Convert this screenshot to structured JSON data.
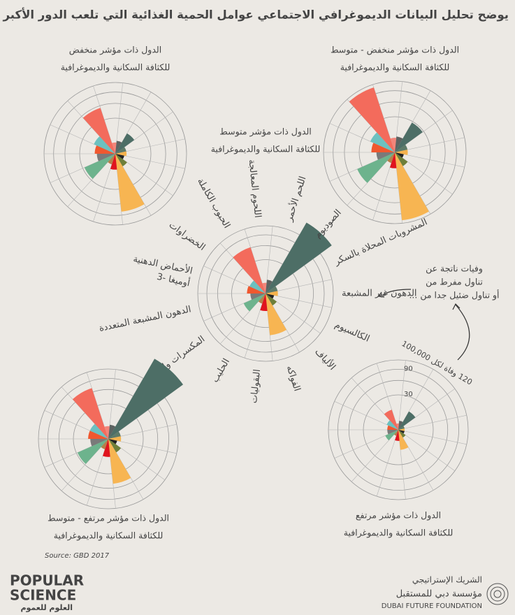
{
  "title": "يوضح تحليل البيانات الديموغرافي الاجتماعي عوامل الحمية الغذائية التي تلعب الدور الأكبر في معدلات الوفاة",
  "categories": [
    "اللحوم المعالجة",
    "اللحم الأحمر",
    "الصوديوم",
    "المشروبات المحلاة بالسكر",
    "الدهون غير المشبعة",
    "الكالسيوم",
    "الألياف",
    "الفواكه",
    "البقوليات",
    "الحليب",
    "المكسرات والبذور",
    "الدهون المشبعة المتعددة",
    [
      "الأحماض الدهنية",
      "أوميغا -3"
    ],
    "الخضراوات",
    "الحبوب الكاملة"
  ],
  "colors": [
    "#f2857a",
    "#5d6361",
    "#4d6e66",
    "#5e7a68",
    "#f5b24c",
    "#222222",
    "#6e7f3a",
    "#f7b552",
    "#e0141e",
    "#b5804a",
    "#6db38d",
    "#7a7a7a",
    "#f0582f",
    "#6cc1c0",
    "#f36b5c"
  ],
  "scale": "sqrt",
  "rlim": [
    0,
    120
  ],
  "rings": [
    30,
    60,
    90,
    120
  ],
  "rticks": [
    30,
    90,
    {
      "value": 120,
      "label": "120 وفاة لكل 100,000"
    }
  ],
  "annotation": [
    "وفيات ناتجة عن",
    "تناول مفرط من",
    "أو تناول ضئيل جدا من ..."
  ],
  "source": "Source: GBD 2017",
  "logos": {
    "left": [
      "POPULAR",
      "SCIENCE",
      "العلوم للعموم"
    ],
    "right": [
      "الشريك الإستراتيجي",
      "مؤسسة دبي للمستقبل",
      "DUBAI FUTURE FOUNDATION"
    ]
  },
  "chart_data": [
    {
      "type": "polar",
      "label": [
        "الدول ذات مؤشر منخفض",
        "للكثافة السكانية والديموغرافية"
      ],
      "values": [
        3,
        4,
        13,
        3,
        3,
        2,
        5,
        80,
        6,
        3,
        27,
        8,
        10,
        13,
        55
      ],
      "show_categories": false,
      "show_ticks": false
    },
    {
      "type": "polar",
      "label": [
        "الدول ذات مؤشر منخفض - متوسط",
        "للكثافة السكانية والديموغرافية"
      ],
      "values": [
        5,
        6,
        28,
        4,
        4,
        2,
        6,
        110,
        6,
        3,
        40,
        8,
        13,
        17,
        110
      ],
      "show_categories": false,
      "show_ticks": false
    },
    {
      "type": "polar",
      "label": [
        "الدول ذات مؤشر متوسط",
        "للكثافة السكانية والديموغرافية"
      ],
      "values": [
        3,
        5,
        175,
        4,
        4,
        2,
        5,
        46,
        8,
        3,
        15,
        6,
        9,
        8,
        62
      ],
      "show_categories": true,
      "show_ticks": false
    },
    {
      "type": "polar",
      "label": [
        "الدول ذات مؤشر مرتفع - متوسط",
        "للكثافة السكانية والديموغرافية"
      ],
      "values": [
        4,
        5,
        210,
        4,
        4,
        2,
        6,
        50,
        8,
        3,
        28,
        8,
        10,
        10,
        70
      ],
      "show_categories": false,
      "show_ticks": false
    },
    {
      "type": "polar",
      "label": [
        "الدول ذات مؤشر مرتفع",
        "للكثافة السكانية والديموغرافية"
      ],
      "values": [
        1,
        2,
        11,
        1,
        1,
        1,
        2,
        10,
        3,
        1,
        5,
        3,
        3,
        4,
        11
      ],
      "show_categories": false,
      "show_ticks": true
    }
  ]
}
